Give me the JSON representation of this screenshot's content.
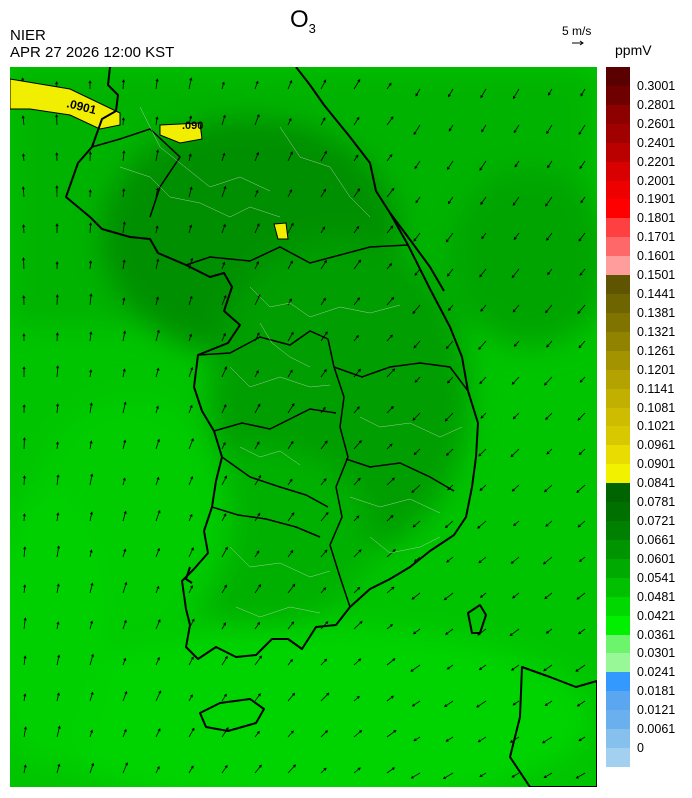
{
  "header": {
    "title_main": "O",
    "title_sub": "3",
    "agency": "NIER",
    "datetime": "APR 27 2026 12:00 KST"
  },
  "wind_reference": {
    "label": "5 m/s"
  },
  "colorbar": {
    "unit": "ppmV",
    "labels": [
      "0.3001",
      "0.2801",
      "0.2601",
      "0.2401",
      "0.2201",
      "0.2001",
      "0.1901",
      "0.1801",
      "0.1701",
      "0.1601",
      "0.1501",
      "0.1441",
      "0.1381",
      "0.1321",
      "0.1261",
      "0.1201",
      "0.1141",
      "0.1081",
      "0.1021",
      "0.0961",
      "0.0901",
      "0.0841",
      "0.0781",
      "0.0721",
      "0.0661",
      "0.0601",
      "0.0541",
      "0.0481",
      "0.0421",
      "0.0361",
      "0.0301",
      "0.0241",
      "0.0181",
      "0.0121",
      "0.0061",
      "0"
    ],
    "colors": [
      "#5a0000",
      "#6e0000",
      "#8c0000",
      "#a00000",
      "#bb0000",
      "#d80000",
      "#ee0000",
      "#ff0000",
      "#ff4040",
      "#ff6868",
      "#ff9c9c",
      "#5f5500",
      "#6e6400",
      "#807300",
      "#918300",
      "#a39300",
      "#b3a200",
      "#c2b000",
      "#cdbc00",
      "#d8c800",
      "#e8dc00",
      "#f2f200",
      "#006400",
      "#007000",
      "#008000",
      "#009400",
      "#00aa00",
      "#00c000",
      "#00d800",
      "#00f000",
      "#6cf46c",
      "#98f898",
      "#3399ff",
      "#5aa6f0",
      "#6ab0ee",
      "#86c0ec",
      "#a2d0ee"
    ]
  },
  "map": {
    "contour_labels": [
      ".0901",
      ".090"
    ],
    "region": "Korean Peninsula",
    "field_colors": {
      "base": "#00c400",
      "dark": "#009a00",
      "mid": "#00ae00",
      "light": "#00dc00",
      "exceed": "#f0ee00"
    }
  }
}
